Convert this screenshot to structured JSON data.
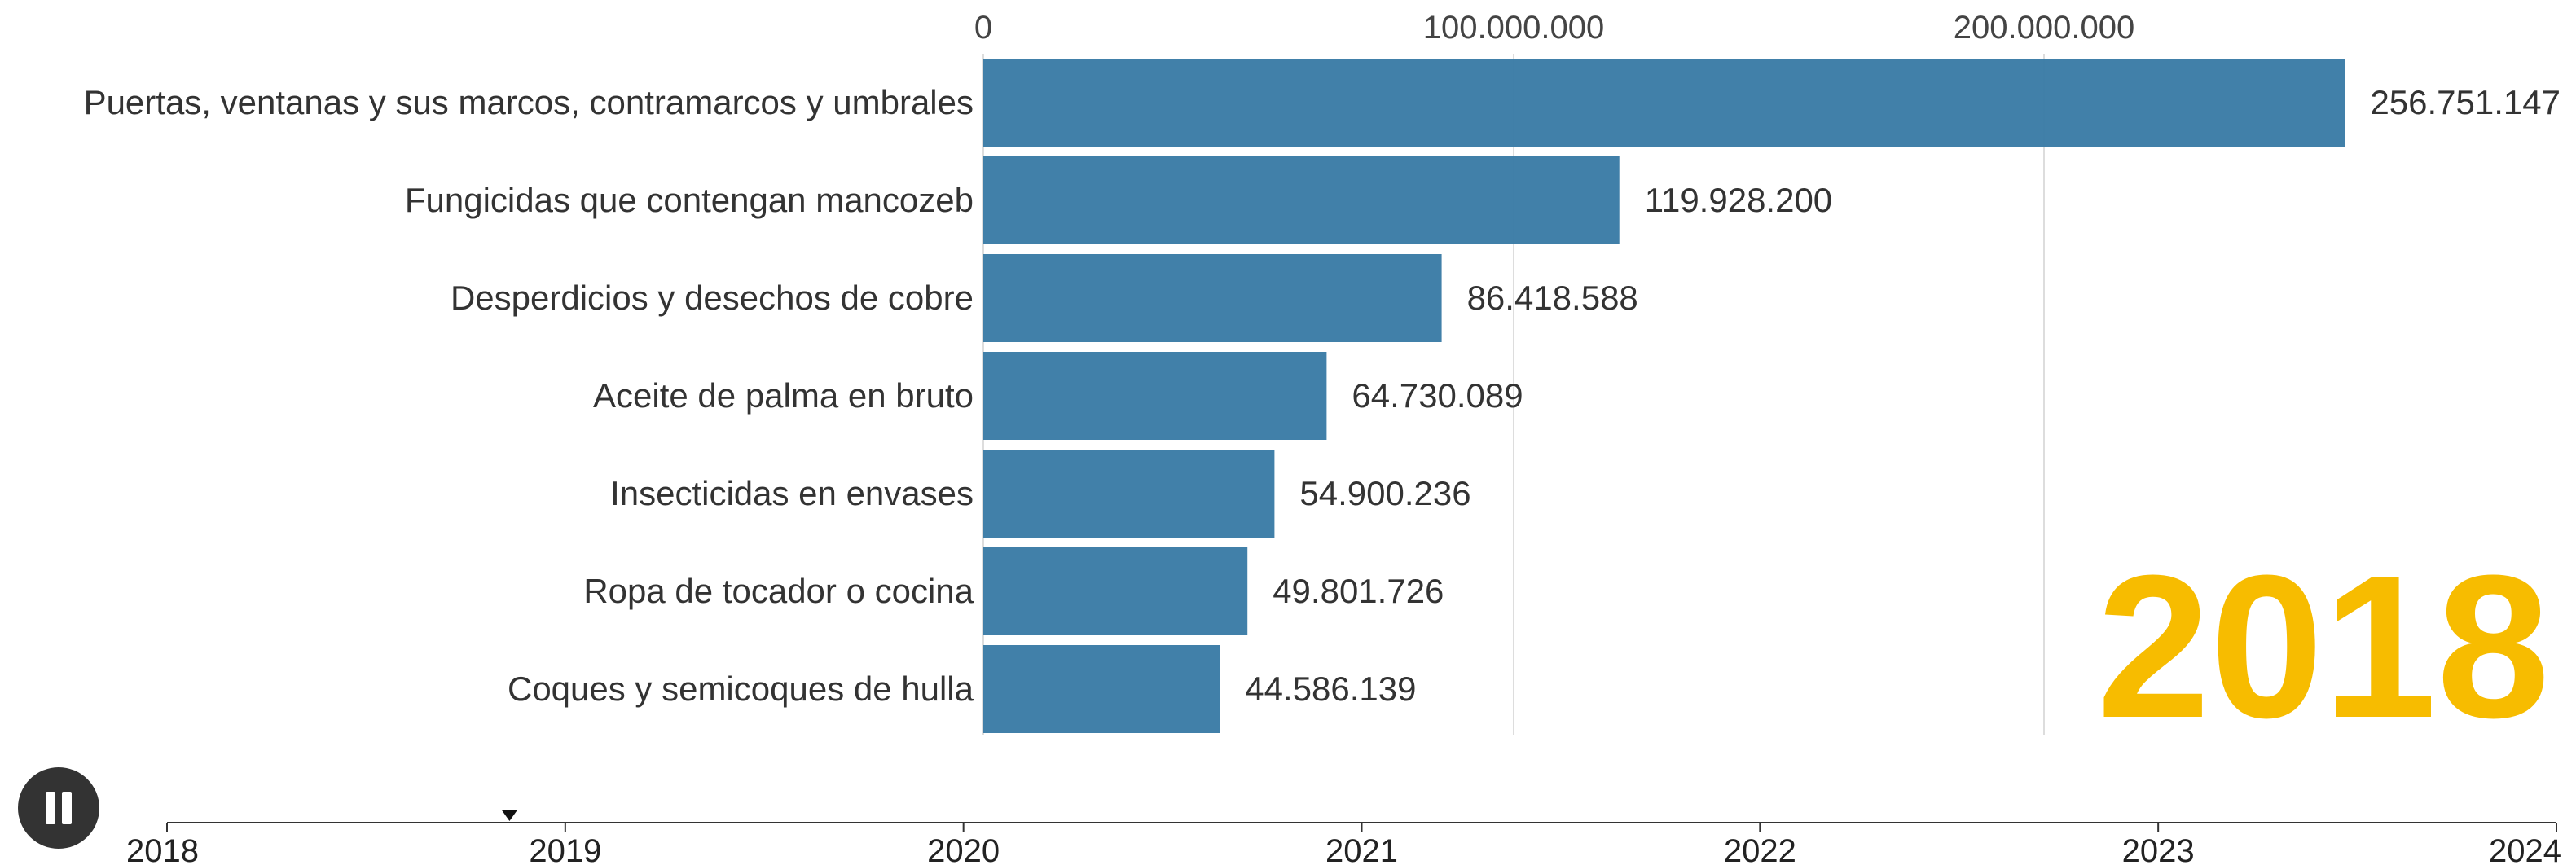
{
  "chart_data": {
    "type": "bar",
    "orientation": "horizontal",
    "current_year_label": "2018",
    "categories": [
      "Puertas, ventanas y sus marcos, contramarcos y umbrales",
      "Fungicidas que contengan mancozeb",
      "Desperdicios y desechos de cobre",
      "Aceite de palma en bruto",
      "Insecticidas en envases",
      "Ropa de tocador o cocina",
      "Coques y semicoques de hulla"
    ],
    "values": [
      256751147,
      119928200,
      86418588,
      64730089,
      54900236,
      49801726,
      44586139
    ],
    "value_labels": [
      "256.751.147",
      "119.928.200",
      "86.418.588",
      "64.730.089",
      "54.900.236",
      "49.801.726",
      "44.586.139"
    ],
    "x_ticks": [
      0,
      100000000,
      200000000
    ],
    "x_tick_labels": [
      "0",
      "100.000.000",
      "200.000.000"
    ],
    "x_axis_position": "top",
    "grid": true,
    "bar_color": "#3b7ca6",
    "year_color": "#f7bc00",
    "timeline": {
      "labels": [
        "2018",
        "2019",
        "2020",
        "2021",
        "2022",
        "2023",
        "2024"
      ],
      "current_value": 2018.86
    }
  },
  "controls": {
    "play_state": "pause",
    "icon": "pause-icon"
  }
}
